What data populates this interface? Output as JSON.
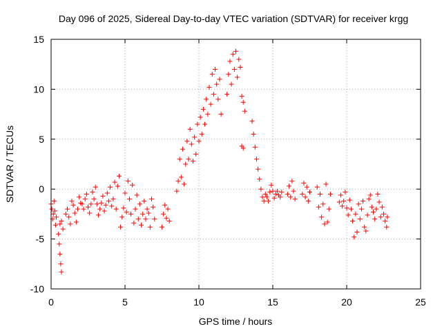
{
  "chart_data": {
    "type": "scatter",
    "title": "Day 096 of 2025, Sidereal Day-to-day VTEC variation (SDTVAR) for receiver krgg",
    "xlabel": "GPS time / hours",
    "ylabel": "SDTVAR / TECUs",
    "xlim": [
      0,
      25
    ],
    "ylim": [
      -10,
      15
    ],
    "xticks": [
      "0",
      "5",
      "10",
      "15",
      "20",
      "25"
    ],
    "yticks": [
      "-10",
      "-5",
      "0",
      "5",
      "10",
      "15"
    ],
    "grid": true,
    "marker": "+",
    "color": "#ff0000",
    "series": [
      {
        "name": "krgg",
        "points": [
          [
            0.0,
            -1.5
          ],
          [
            0.05,
            -2.0
          ],
          [
            0.1,
            -3.0
          ],
          [
            0.15,
            -2.5
          ],
          [
            0.2,
            -1.2
          ],
          [
            0.25,
            -2.2
          ],
          [
            0.3,
            -3.6
          ],
          [
            0.35,
            -2.8
          ],
          [
            0.5,
            -4.5
          ],
          [
            0.55,
            -5.5
          ],
          [
            0.6,
            -6.5
          ],
          [
            0.65,
            -7.5
          ],
          [
            0.7,
            -8.3
          ],
          [
            0.6,
            -3.5
          ],
          [
            0.7,
            -3.2
          ],
          [
            0.8,
            -4.0
          ],
          [
            1.0,
            -2.5
          ],
          [
            1.1,
            -2.0
          ],
          [
            1.2,
            -2.8
          ],
          [
            1.3,
            -3.5
          ],
          [
            1.4,
            -1.2
          ],
          [
            1.5,
            -1.6
          ],
          [
            1.6,
            -2.4
          ],
          [
            1.7,
            -3.3
          ],
          [
            1.8,
            -2.0
          ],
          [
            1.9,
            -0.8
          ],
          [
            2.0,
            -1.4
          ],
          [
            2.1,
            -1.5
          ],
          [
            2.2,
            -2.0
          ],
          [
            2.3,
            -1.0
          ],
          [
            2.4,
            -0.5
          ],
          [
            2.5,
            -1.8
          ],
          [
            2.6,
            -2.4
          ],
          [
            2.7,
            -1.5
          ],
          [
            2.8,
            -0.3
          ],
          [
            2.9,
            -1.0
          ],
          [
            3.0,
            0.2
          ],
          [
            3.1,
            -1.5
          ],
          [
            3.2,
            -2.6
          ],
          [
            3.3,
            -2.0
          ],
          [
            3.4,
            -1.4
          ],
          [
            3.5,
            -0.7
          ],
          [
            3.6,
            -2.2
          ],
          [
            3.7,
            -1.6
          ],
          [
            3.8,
            -0.4
          ],
          [
            3.9,
            -1.2
          ],
          [
            4.0,
            0.2
          ],
          [
            4.1,
            -1.7
          ],
          [
            4.2,
            -1.0
          ],
          [
            4.3,
            0.7
          ],
          [
            4.4,
            -2.0
          ],
          [
            4.5,
            0.3
          ],
          [
            4.6,
            1.3
          ],
          [
            4.7,
            -3.8
          ],
          [
            4.8,
            -2.8
          ],
          [
            4.9,
            -1.9
          ],
          [
            5.0,
            -0.4
          ],
          [
            5.1,
            -2.3
          ],
          [
            5.2,
            0.8
          ],
          [
            5.3,
            -1.0
          ],
          [
            5.4,
            -2.5
          ],
          [
            5.5,
            0.4
          ],
          [
            5.6,
            -3.4
          ],
          [
            5.7,
            -2.0
          ],
          [
            5.8,
            -0.6
          ],
          [
            5.9,
            -3.0
          ],
          [
            6.0,
            -1.5
          ],
          [
            6.1,
            -3.6
          ],
          [
            6.2,
            -2.5
          ],
          [
            6.3,
            -1.2
          ],
          [
            6.4,
            -3.0
          ],
          [
            6.5,
            -2.0
          ],
          [
            6.6,
            -2.4
          ],
          [
            6.7,
            -3.8
          ],
          [
            6.8,
            -1.0
          ],
          [
            6.9,
            -1.8
          ],
          [
            7.0,
            -3.0
          ],
          [
            7.5,
            -3.8
          ],
          [
            7.6,
            -2.5
          ],
          [
            7.7,
            -1.6
          ],
          [
            7.8,
            -2.9
          ],
          [
            7.9,
            -2.0
          ],
          [
            8.0,
            -3.2
          ],
          [
            8.5,
            -0.2
          ],
          [
            8.6,
            0.8
          ],
          [
            8.7,
            3.0
          ],
          [
            8.8,
            1.2
          ],
          [
            8.9,
            4.0
          ],
          [
            9.0,
            0.5
          ],
          [
            9.1,
            2.5
          ],
          [
            9.2,
            4.8
          ],
          [
            9.3,
            3.0
          ],
          [
            9.4,
            6.0
          ],
          [
            9.5,
            4.5
          ],
          [
            9.6,
            2.8
          ],
          [
            9.7,
            5.2
          ],
          [
            9.8,
            3.5
          ],
          [
            9.9,
            6.5
          ],
          [
            10.0,
            4.8
          ],
          [
            10.1,
            7.2
          ],
          [
            10.2,
            5.5
          ],
          [
            10.3,
            8.0
          ],
          [
            10.4,
            6.5
          ],
          [
            10.5,
            9.0
          ],
          [
            10.6,
            7.5
          ],
          [
            10.7,
            10.2
          ],
          [
            10.8,
            8.5
          ],
          [
            10.9,
            11.5
          ],
          [
            11.0,
            9.5
          ],
          [
            11.1,
            12.0
          ],
          [
            11.2,
            10.5
          ],
          [
            11.3,
            9.0
          ],
          [
            11.4,
            11.0
          ],
          [
            11.5,
            7.5
          ],
          [
            11.9,
            9.5
          ],
          [
            12.0,
            11.5
          ],
          [
            12.1,
            12.8
          ],
          [
            12.2,
            10.5
          ],
          [
            12.3,
            13.5
          ],
          [
            12.4,
            12.0
          ],
          [
            12.5,
            13.8
          ],
          [
            12.6,
            11.2
          ],
          [
            12.7,
            13.0
          ],
          [
            12.8,
            12.2
          ],
          [
            12.9,
            9.3
          ],
          [
            13.0,
            8.7
          ],
          [
            13.1,
            7.8
          ],
          [
            12.9,
            4.3
          ],
          [
            13.0,
            4.1
          ],
          [
            13.6,
            6.8
          ],
          [
            13.7,
            5.5
          ],
          [
            13.8,
            4.2
          ],
          [
            13.9,
            3.0
          ],
          [
            14.0,
            2.0
          ],
          [
            14.1,
            1.0
          ],
          [
            14.2,
            0.0
          ],
          [
            14.3,
            -0.8
          ],
          [
            14.4,
            -1.2
          ],
          [
            14.5,
            -0.5
          ],
          [
            14.6,
            -0.8
          ],
          [
            14.7,
            -1.2
          ],
          [
            14.8,
            -0.3
          ],
          [
            14.9,
            0.4
          ],
          [
            15.0,
            -0.2
          ],
          [
            15.1,
            -0.9
          ],
          [
            15.2,
            -0.5
          ],
          [
            15.3,
            -0.2
          ],
          [
            15.4,
            -0.6
          ],
          [
            15.5,
            -0.8
          ],
          [
            15.6,
            -0.3
          ],
          [
            16.0,
            -0.5
          ],
          [
            16.1,
            0.3
          ],
          [
            16.2,
            -0.8
          ],
          [
            16.3,
            0.8
          ],
          [
            16.4,
            -0.2
          ],
          [
            16.5,
            -1.0
          ],
          [
            17.0,
            -0.5
          ],
          [
            17.1,
            0.6
          ],
          [
            17.2,
            -0.8
          ],
          [
            17.3,
            0.2
          ],
          [
            17.4,
            -1.2
          ],
          [
            17.5,
            -0.3
          ],
          [
            18.0,
            0.2
          ],
          [
            18.1,
            -1.8
          ],
          [
            18.2,
            -0.5
          ],
          [
            18.3,
            -2.8
          ],
          [
            18.4,
            -1.5
          ],
          [
            18.5,
            -3.5
          ],
          [
            18.6,
            0.5
          ],
          [
            18.7,
            -3.3
          ],
          [
            18.8,
            -2.0
          ],
          [
            18.9,
            -0.5
          ],
          [
            19.5,
            -1.3
          ],
          [
            19.6,
            -0.6
          ],
          [
            19.7,
            -1.7
          ],
          [
            19.8,
            -1.2
          ],
          [
            19.9,
            -0.3
          ],
          [
            20.0,
            -1.9
          ],
          [
            20.1,
            -2.6
          ],
          [
            20.2,
            -1.1
          ],
          [
            20.3,
            -2.0
          ],
          [
            20.4,
            -3.2
          ],
          [
            20.5,
            -4.8
          ],
          [
            20.6,
            -2.5
          ],
          [
            20.7,
            -4.3
          ],
          [
            20.8,
            -1.5
          ],
          [
            20.9,
            -3.0
          ],
          [
            21.0,
            -2.0
          ],
          [
            21.1,
            -1.2
          ],
          [
            21.2,
            -3.8
          ],
          [
            21.3,
            -4.2
          ],
          [
            21.4,
            -2.6
          ],
          [
            21.5,
            -1.0
          ],
          [
            21.6,
            -0.6
          ],
          [
            21.7,
            -1.8
          ],
          [
            21.8,
            -2.3
          ],
          [
            21.9,
            -3.0
          ],
          [
            22.0,
            -2.0
          ],
          [
            22.1,
            -0.5
          ],
          [
            22.2,
            -1.3
          ],
          [
            22.3,
            -2.8
          ],
          [
            22.4,
            -1.8
          ],
          [
            22.5,
            -2.5
          ],
          [
            22.6,
            -3.2
          ],
          [
            22.7,
            -3.8
          ],
          [
            22.75,
            -2.8
          ]
        ]
      }
    ]
  }
}
